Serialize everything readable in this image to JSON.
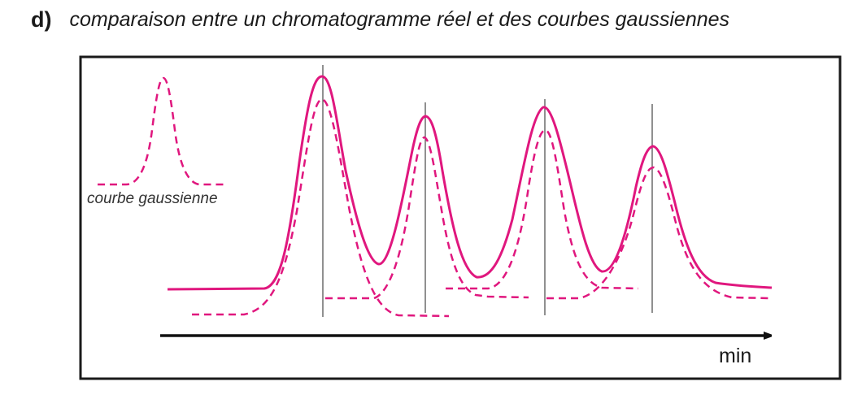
{
  "header": {
    "label": "d)",
    "title": "comparaison entre un chromatogramme réel et des courbes gaussiennes"
  },
  "diagram": {
    "legend_label": "courbe gaussienne",
    "axis_unit": "min",
    "colors": {
      "curve": "#e0177e",
      "frame": "#1a1a1a",
      "axis": "#111111",
      "marker": "#222222"
    }
  }
}
